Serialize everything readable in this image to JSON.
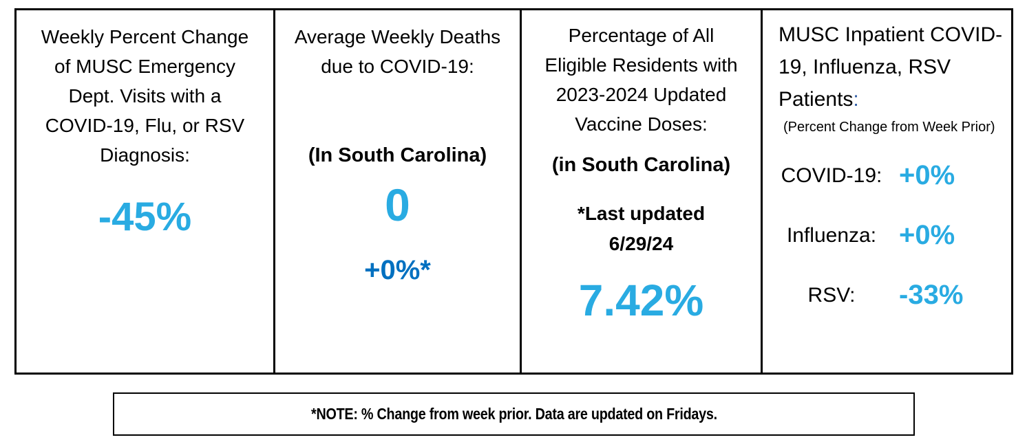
{
  "colors": {
    "accent_cyan": "#29ABE2",
    "accent_dark_blue": "#0070C0",
    "title_colon_blue": "#2E5CA6",
    "border": "#000000",
    "background": "#FFFFFF"
  },
  "panels": [
    {
      "title_lines": [
        "Weekly Percent Change",
        "of MUSC Emergency",
        "Dept. Visits with a",
        "COVID-19, Flu, or RSV",
        "Diagnosis:"
      ],
      "value": "-45%"
    },
    {
      "title_lines": [
        "Average Weekly Deaths",
        "due to COVID-19:"
      ],
      "subtitle": "(In South Carolina)",
      "value": "0",
      "secondary_value": "+0%*"
    },
    {
      "title_lines": [
        "Percentage of All",
        "Eligible Residents with",
        "2023-2024 Updated",
        "Vaccine Doses:"
      ],
      "subtitle": "(in South Carolina)",
      "updated_line1": "*Last updated",
      "updated_line2": "6/29/24",
      "value": "7.42%"
    },
    {
      "title_lines": [
        "MUSC Inpatient COVID-",
        "19, Influenza, RSV",
        "Patients"
      ],
      "title_colon": ":",
      "subtitle": "(Percent Change from Week Prior)",
      "rows": [
        {
          "label": "COVID-19:",
          "value": "+0%"
        },
        {
          "label": "Influenza:",
          "value": "+0%"
        },
        {
          "label": "RSV:",
          "value": "-33%"
        }
      ]
    }
  ],
  "note": "*NOTE: % Change from week prior. Data are updated on Fridays."
}
